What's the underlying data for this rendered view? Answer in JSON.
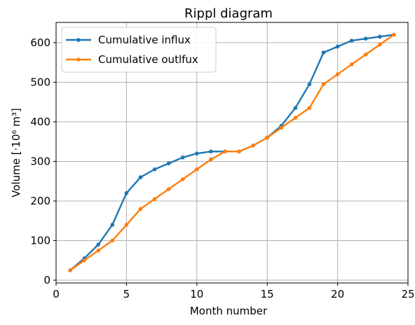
{
  "chart_data": {
    "type": "line",
    "title": "Rippl diagram",
    "xlabel": "Month number",
    "ylabel": "Volume [·10⁶ m³]",
    "xlim": [
      0,
      25
    ],
    "ylim": [
      -7,
      651
    ],
    "xticks": [
      "0",
      "5",
      "10",
      "15",
      "20",
      "25"
    ],
    "yticks": [
      "0",
      "100",
      "200",
      "300",
      "400",
      "500",
      "600"
    ],
    "grid": true,
    "legend_position": "top-left",
    "x": [
      1,
      2,
      3,
      4,
      5,
      6,
      7,
      8,
      9,
      10,
      11,
      12,
      13,
      14,
      15,
      16,
      17,
      18,
      19,
      20,
      21,
      22,
      23,
      24
    ],
    "series": [
      {
        "name": "Cumulative influx",
        "color": "#1f77b4",
        "values": [
          25,
          55,
          90,
          140,
          220,
          260,
          280,
          295,
          310,
          320,
          325,
          325,
          325,
          340,
          360,
          390,
          435,
          495,
          575,
          590,
          605,
          610,
          615,
          620
        ]
      },
      {
        "name": "Cumulative outlfux",
        "color": "#ff7f0e",
        "values": [
          25,
          50,
          75,
          100,
          140,
          180,
          205,
          230,
          255,
          280,
          305,
          325,
          325,
          340,
          360,
          385,
          410,
          435,
          495,
          520,
          545,
          570,
          595,
          620
        ]
      }
    ]
  }
}
